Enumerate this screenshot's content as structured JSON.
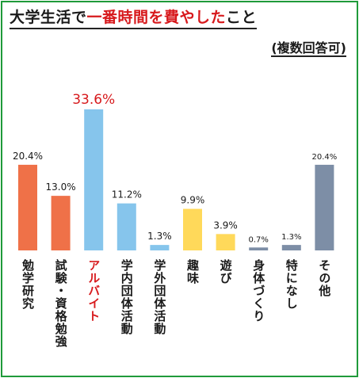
{
  "title": {
    "part1": "大学生活で",
    "part2": "一番時間を費やした",
    "part3": "こと"
  },
  "subtitle": "(複数回答可)",
  "chart_data": {
    "type": "bar",
    "categories": [
      "勉学研究",
      "試験・資格勉強",
      "アルバイト",
      "学内団体活動",
      "学外団体活動",
      "趣味",
      "遊び",
      "身体づくり",
      "特になし",
      "その他"
    ],
    "values": [
      20.4,
      13.0,
      33.6,
      11.2,
      1.3,
      9.9,
      3.9,
      0.7,
      1.3,
      20.4
    ],
    "value_labels": [
      "20.4%",
      "13.0%",
      "33.6%",
      "11.2%",
      "1.3%",
      "9.9%",
      "3.9%",
      "0.7%",
      "1.3%",
      "20.4%"
    ],
    "bar_colors": [
      "#ef7148",
      "#ef7148",
      "#86c5ec",
      "#86c5ec",
      "#86c5ec",
      "#ffd95a",
      "#ffd95a",
      "#7d8ea6",
      "#7d8ea6",
      "#7d8ea6"
    ],
    "highlight_category": "アルバイト",
    "highlight_color": "#d7191c",
    "ylim": [
      0,
      33.6
    ]
  }
}
